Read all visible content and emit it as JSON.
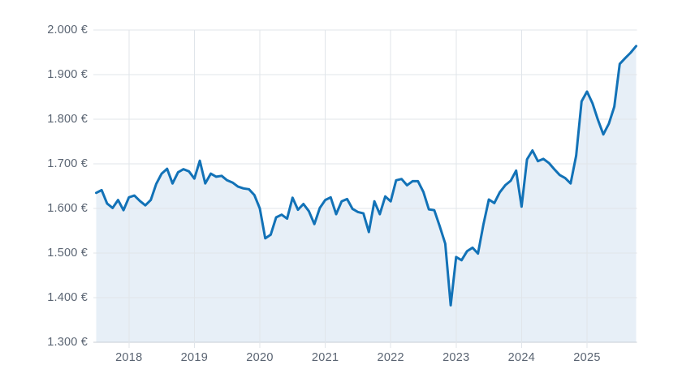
{
  "chart_data": {
    "type": "area",
    "title": "",
    "currency_suffix": " €",
    "legend": "none",
    "grid": true,
    "x_axis": {
      "ticks": [
        2018,
        2019,
        2020,
        2021,
        2022,
        2023,
        2024,
        2025
      ],
      "tick_labels": [
        "2018",
        "2019",
        "2020",
        "2021",
        "2022",
        "2023",
        "2024",
        "2025"
      ]
    },
    "y_axis": {
      "min": 1300,
      "max": 2000,
      "step": 100,
      "ticks": [
        2000,
        1900,
        1800,
        1700,
        1600,
        1500,
        1400,
        1300
      ],
      "tick_labels": [
        "2.000 €",
        "1.900 €",
        "1.800 €",
        "1.700 €",
        "1.600 €",
        "1.500 €",
        "1.400 €",
        "1.300 €"
      ]
    },
    "x": [
      "2017-07",
      "2017-08",
      "2017-09",
      "2017-10",
      "2017-11",
      "2017-12",
      "2018-01",
      "2018-02",
      "2018-03",
      "2018-04",
      "2018-05",
      "2018-06",
      "2018-07",
      "2018-08",
      "2018-09",
      "2018-10",
      "2018-11",
      "2018-12",
      "2019-01",
      "2019-02",
      "2019-03",
      "2019-04",
      "2019-05",
      "2019-06",
      "2019-07",
      "2019-08",
      "2019-09",
      "2019-10",
      "2019-11",
      "2019-12",
      "2020-01",
      "2020-02",
      "2020-03",
      "2020-04",
      "2020-05",
      "2020-06",
      "2020-07",
      "2020-08",
      "2020-09",
      "2020-10",
      "2020-11",
      "2020-12",
      "2021-01",
      "2021-02",
      "2021-03",
      "2021-04",
      "2021-05",
      "2021-06",
      "2021-07",
      "2021-08",
      "2021-09",
      "2021-10",
      "2021-11",
      "2021-12",
      "2022-01",
      "2022-02",
      "2022-03",
      "2022-04",
      "2022-05",
      "2022-06",
      "2022-07",
      "2022-08",
      "2022-09",
      "2022-10",
      "2022-11",
      "2022-12",
      "2023-01",
      "2023-02",
      "2023-03",
      "2023-04",
      "2023-05",
      "2023-06",
      "2023-07",
      "2023-08",
      "2023-09",
      "2023-10",
      "2023-11",
      "2023-12",
      "2024-01",
      "2024-02",
      "2024-03",
      "2024-04",
      "2024-05",
      "2024-06",
      "2024-07",
      "2024-08",
      "2024-09",
      "2024-10",
      "2024-11",
      "2024-12",
      "2025-01",
      "2025-02",
      "2025-03",
      "2025-04",
      "2025-05",
      "2025-06",
      "2025-07",
      "2025-08",
      "2025-09",
      "2025-10"
    ],
    "values": [
      1635,
      1641,
      1611,
      1601,
      1619,
      1596,
      1625,
      1629,
      1617,
      1607,
      1619,
      1655,
      1678,
      1689,
      1656,
      1681,
      1688,
      1683,
      1667,
      1707,
      1656,
      1678,
      1671,
      1673,
      1663,
      1658,
      1649,
      1645,
      1643,
      1630,
      1600,
      1533,
      1541,
      1580,
      1586,
      1577,
      1624,
      1597,
      1610,
      1594,
      1565,
      1601,
      1619,
      1625,
      1587,
      1616,
      1621,
      1599,
      1592,
      1589,
      1547,
      1616,
      1587,
      1627,
      1616,
      1663,
      1666,
      1652,
      1661,
      1661,
      1637,
      1598,
      1596,
      1560,
      1521,
      1383,
      1491,
      1484,
      1504,
      1512,
      1499,
      1564,
      1620,
      1612,
      1636,
      1652,
      1662,
      1685,
      1604,
      1710,
      1730,
      1706,
      1711,
      1702,
      1688,
      1675,
      1668,
      1656,
      1718,
      1840,
      1862,
      1836,
      1799,
      1766,
      1790,
      1828,
      1924,
      1937,
      1949,
      1964
    ],
    "colors": {
      "line": "#1272b7",
      "fill": "#e7eff7",
      "grid": "#e0e5ea",
      "baseline": "#c7ced6",
      "label": "#5a6472",
      "background": "#ffffff"
    }
  }
}
